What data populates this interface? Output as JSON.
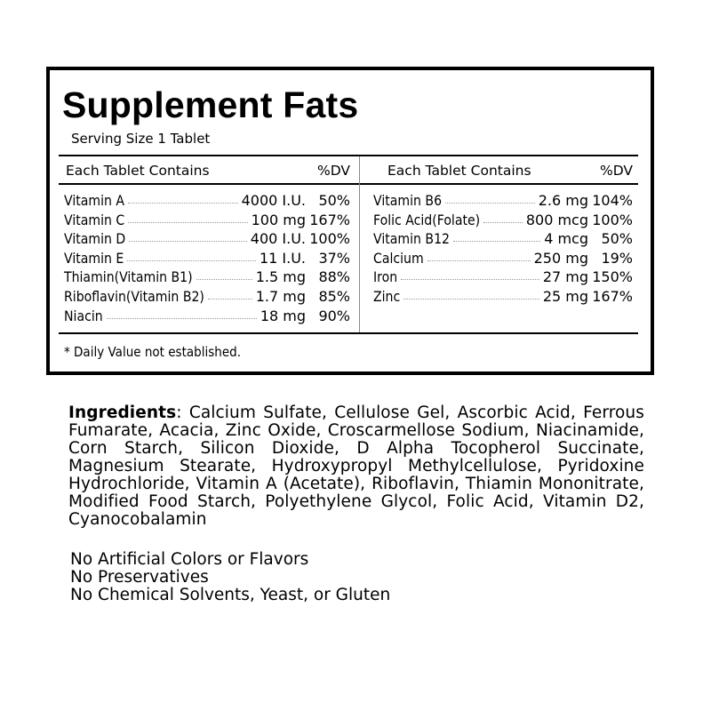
{
  "panel": {
    "title": "Supplement Fats",
    "serving_size": "Serving Size 1 Tablet",
    "columns": [
      {
        "header": "Each Tablet Contains",
        "dv_header": "%DV",
        "rows": [
          {
            "name": "Vitamin A",
            "amount": "4000 I.U.",
            "dv": "50%"
          },
          {
            "name": "Vitamin C",
            "amount": "100 mg",
            "dv": "167%"
          },
          {
            "name": "Vitamin D",
            "amount": "400 I.U.",
            "dv": "100%"
          },
          {
            "name": "Vitamin E",
            "amount": "11 I.U.",
            "dv": "37%"
          },
          {
            "name": "Thiamin(Vitamin B1)",
            "amount": "1.5 mg",
            "dv": "88%"
          },
          {
            "name": "Riboflavin(Vitamin B2)",
            "amount": "1.7 mg",
            "dv": "85%"
          },
          {
            "name": "Niacin",
            "amount": "18 mg",
            "dv": "90%"
          }
        ]
      },
      {
        "header": "Each Tablet Contains",
        "dv_header": "%DV",
        "rows": [
          {
            "name": "Vitamin B6",
            "amount": "2.6 mg",
            "dv": "104%"
          },
          {
            "name": "Folic Acid(Folate)",
            "amount": "800 mcg",
            "dv": "100%"
          },
          {
            "name": "Vitamin B12",
            "amount": "4 mcg",
            "dv": "50%"
          },
          {
            "name": "Calcium",
            "amount": "250 mg",
            "dv": "19%"
          },
          {
            "name": "Iron",
            "amount": "27 mg",
            "dv": "150%"
          },
          {
            "name": "Zinc",
            "amount": "25 mg",
            "dv": "167%"
          }
        ]
      }
    ],
    "footnote": "* Daily Value not established."
  },
  "ingredients": {
    "label": "Ingredients",
    "text": ": Calcium Sulfate, Cellulose Gel, Ascorbic Acid, Ferrous Fumarate, Acacia, Zinc Oxide, Croscarmellose Sodium, Niacinamide, Corn Starch, Silicon Dioxide, D Alpha Tocopherol Succinate, Magnesium Stearate, Hydroxypropyl Methylcellulose, Pyridoxine Hydrochloride, Vitamin A (Acetate), Riboflavin, Thiamin Mononitrate, Modified Food Starch, Polyethylene Glycol, Folic Acid, Vitamin D2, Cyanocobalamin"
  },
  "claims": [
    "No Artificial Colors or Flavors",
    "No Preservatives",
    "No Chemical Solvents, Yeast, or Gluten"
  ]
}
